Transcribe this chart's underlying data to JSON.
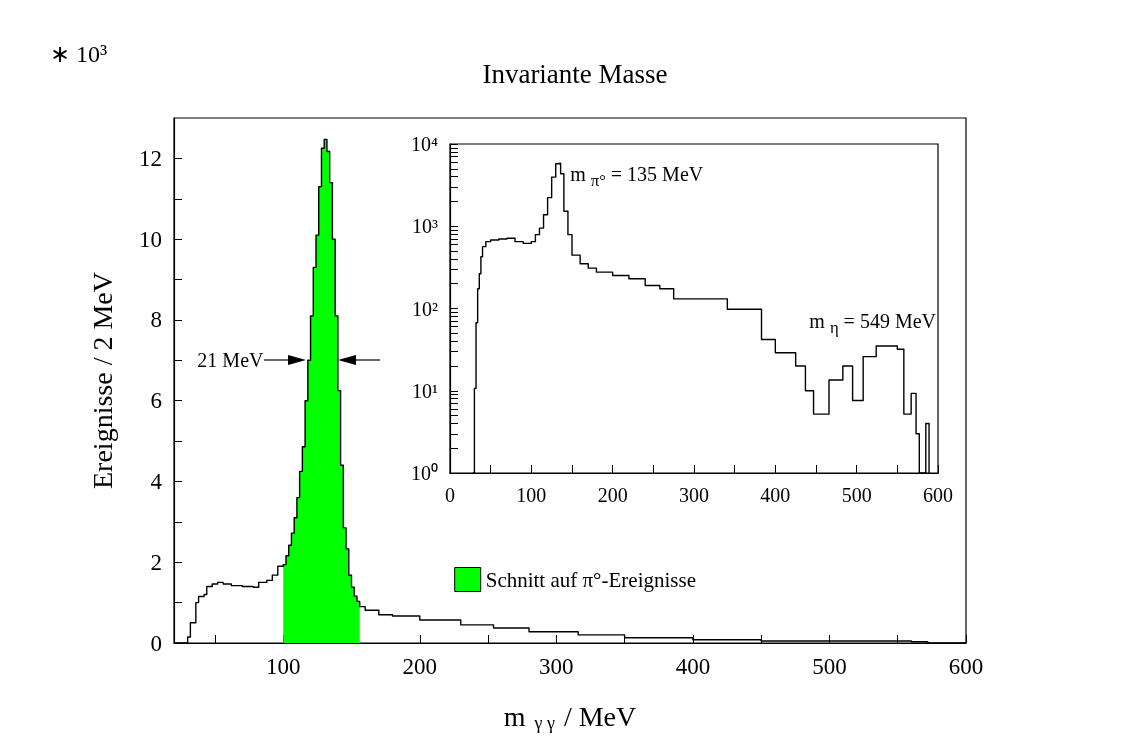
{
  "chart_data": [
    {
      "type": "step",
      "title": "Invariante Masse",
      "xlabel": "m $_{γ γ}$ / MeV",
      "ylabel": "Ereignisse / 2 MeV",
      "annotations": [
        "∗ 10³",
        {
          "text": "21 MeV",
          "x": 117,
          "y": 7
        }
      ],
      "xlim": [
        20,
        600
      ],
      "xticks": [
        {
          "value": 50,
          "label": null
        },
        100,
        {
          "value": 150,
          "label": null
        },
        200,
        {
          "value": 250,
          "label": null
        },
        300,
        {
          "value": 350,
          "label": null
        },
        400,
        {
          "value": 450,
          "label": null
        },
        500,
        {
          "value": 550,
          "label": null
        },
        600
      ],
      "ylim": [
        0,
        13
      ],
      "yticks": [
        0,
        {
          "value": 1,
          "label": null
        },
        2,
        {
          "value": 3,
          "label": null
        },
        4,
        {
          "value": 5,
          "label": null
        },
        6,
        {
          "value": 7,
          "label": null
        },
        8,
        {
          "value": 9,
          "label": null
        },
        10,
        {
          "value": 11,
          "label": null
        },
        12
      ],
      "grid": false,
      "legend": "bottom",
      "marker": "none",
      "series": [
        {
          "type": "area",
          "name": "Schnitt auf π°-Ereignisse",
          "color": "#00ff00",
          "x": [
            100,
            102,
            104,
            106,
            108,
            110,
            112,
            114,
            116,
            118,
            120,
            122,
            124,
            126,
            128,
            130,
            132,
            134,
            136,
            138,
            140,
            142,
            144,
            146,
            148,
            150,
            152,
            154,
            156
          ],
          "values": [
            1.94,
            2.16,
            2.42,
            2.72,
            3.1,
            3.6,
            4.25,
            4.86,
            6.0,
            7.0,
            8.1,
            9.3,
            10.1,
            11.3,
            12.25,
            12.47,
            12.17,
            11.4,
            10.0,
            8.1,
            6.25,
            4.4,
            2.85,
            2.33,
            1.68,
            1.38,
            1.16,
            1.03,
            0.9
          ]
        },
        {
          "color": "#000000",
          "x": [
            20,
            30,
            32,
            36,
            38,
            42,
            44,
            48,
            52,
            56,
            62,
            70,
            78,
            82,
            88,
            92,
            96,
            100,
            102,
            104,
            106,
            108,
            110,
            112,
            114,
            116,
            118,
            120,
            122,
            124,
            126,
            128,
            130,
            132,
            134,
            136,
            138,
            140,
            142,
            144,
            146,
            148,
            150,
            152,
            154,
            156,
            160,
            170,
            180,
            200,
            230,
            254,
            280,
            316,
            350,
            400,
            450,
            520,
            560,
            572,
            600
          ],
          "values": [
            0,
            0.15,
            0.5,
            1.0,
            1.15,
            1.2,
            1.4,
            1.46,
            1.5,
            1.46,
            1.42,
            1.4,
            1.38,
            1.5,
            1.55,
            1.68,
            1.9,
            1.94,
            2.16,
            2.42,
            2.72,
            3.1,
            3.6,
            4.25,
            4.86,
            6.0,
            7.0,
            8.1,
            9.3,
            10.1,
            11.3,
            12.25,
            12.47,
            12.17,
            11.4,
            10.0,
            8.1,
            6.25,
            4.4,
            2.85,
            2.33,
            1.68,
            1.38,
            1.16,
            1.03,
            0.9,
            0.81,
            0.7,
            0.67,
            0.57,
            0.45,
            0.37,
            0.28,
            0.2,
            0.13,
            0.08,
            0.05,
            0.05,
            0.03,
            0,
            0
          ]
        }
      ]
    },
    {
      "type": "step",
      "log": true,
      "grid": false,
      "marker": "none",
      "annotations": [
        {
          "text": "m $_{π°}$ = 135 MeV",
          "x": 133,
          "y": 5850
        },
        {
          "text": "m $_{η}$ = 549 MeV",
          "x": 549,
          "y": 32
        }
      ],
      "xlim": [
        0,
        600
      ],
      "xticks": [
        0,
        {
          "value": 50,
          "label": null
        },
        100,
        {
          "value": 150,
          "label": null
        },
        200,
        {
          "value": 250,
          "label": null
        },
        300,
        {
          "value": 350,
          "label": null
        },
        400,
        {
          "value": 450,
          "label": null
        },
        500,
        {
          "value": 550,
          "label": null
        },
        600
      ],
      "ylim": [
        1,
        10000
      ],
      "yticks": [
        {
          "value": 1,
          "label": "10⁰"
        },
        {
          "value": 2,
          "label": null
        },
        {
          "value": 3,
          "label": null
        },
        {
          "value": 4,
          "label": null
        },
        {
          "value": 5,
          "label": null
        },
        {
          "value": 6,
          "label": null
        },
        {
          "value": 7,
          "label": null
        },
        {
          "value": 8,
          "label": null
        },
        {
          "value": 9,
          "label": null
        },
        {
          "value": 10,
          "label": "10¹"
        },
        {
          "value": 20,
          "label": null
        },
        {
          "value": 30,
          "label": null
        },
        {
          "value": 40,
          "label": null
        },
        {
          "value": 50,
          "label": null
        },
        {
          "value": 60,
          "label": null
        },
        {
          "value": 70,
          "label": null
        },
        {
          "value": 80,
          "label": null
        },
        {
          "value": 90,
          "label": null
        },
        {
          "value": 100,
          "label": "10²"
        },
        {
          "value": 200,
          "label": null
        },
        {
          "value": 300,
          "label": null
        },
        {
          "value": 400,
          "label": null
        },
        {
          "value": 500,
          "label": null
        },
        {
          "value": 600,
          "label": null
        },
        {
          "value": 700,
          "label": null
        },
        {
          "value": 800,
          "label": null
        },
        {
          "value": 900,
          "label": null
        },
        {
          "value": 1000,
          "label": "10³"
        },
        {
          "value": 2000,
          "label": null
        },
        {
          "value": 3000,
          "label": null
        },
        {
          "value": 4000,
          "label": null
        },
        {
          "value": 5000,
          "label": null
        },
        {
          "value": 6000,
          "label": null
        },
        {
          "value": 7000,
          "label": null
        },
        {
          "value": 8000,
          "label": null
        },
        {
          "value": 9000,
          "label": null
        },
        {
          "value": 10000,
          "label": "10⁴"
        }
      ],
      "series": [
        {
          "color": "#000000",
          "x": [
            28,
            30,
            32,
            34,
            36,
            38,
            40,
            44,
            50,
            60,
            70,
            80,
            90,
            100,
            105,
            110,
            115,
            120,
            125,
            130,
            133,
            136,
            140,
            145,
            150,
            160,
            170,
            180,
            200,
            220,
            240,
            258,
            275,
            300,
            341,
            383,
            400,
            425,
            437,
            447,
            466,
            483,
            495,
            508,
            524,
            550,
            558,
            567,
            573,
            577,
            585,
            589
          ],
          "values": [
            1,
            10.7,
            67,
            174,
            265,
            426,
            565,
            650,
            680,
            700,
            716,
            650,
            620,
            650,
            790,
            950,
            1380,
            2230,
            3960,
            5750,
            5850,
            4350,
            1520,
            790,
            445,
            350,
            310,
            277,
            252,
            230,
            190,
            174,
            131,
            131,
            98,
            42,
            29,
            20,
            10,
            5.2,
            13.5,
            20,
            7.6,
            26,
            35,
            32,
            5.2,
            9.3,
            3,
            1,
            4,
            1
          ]
        }
      ]
    }
  ]
}
